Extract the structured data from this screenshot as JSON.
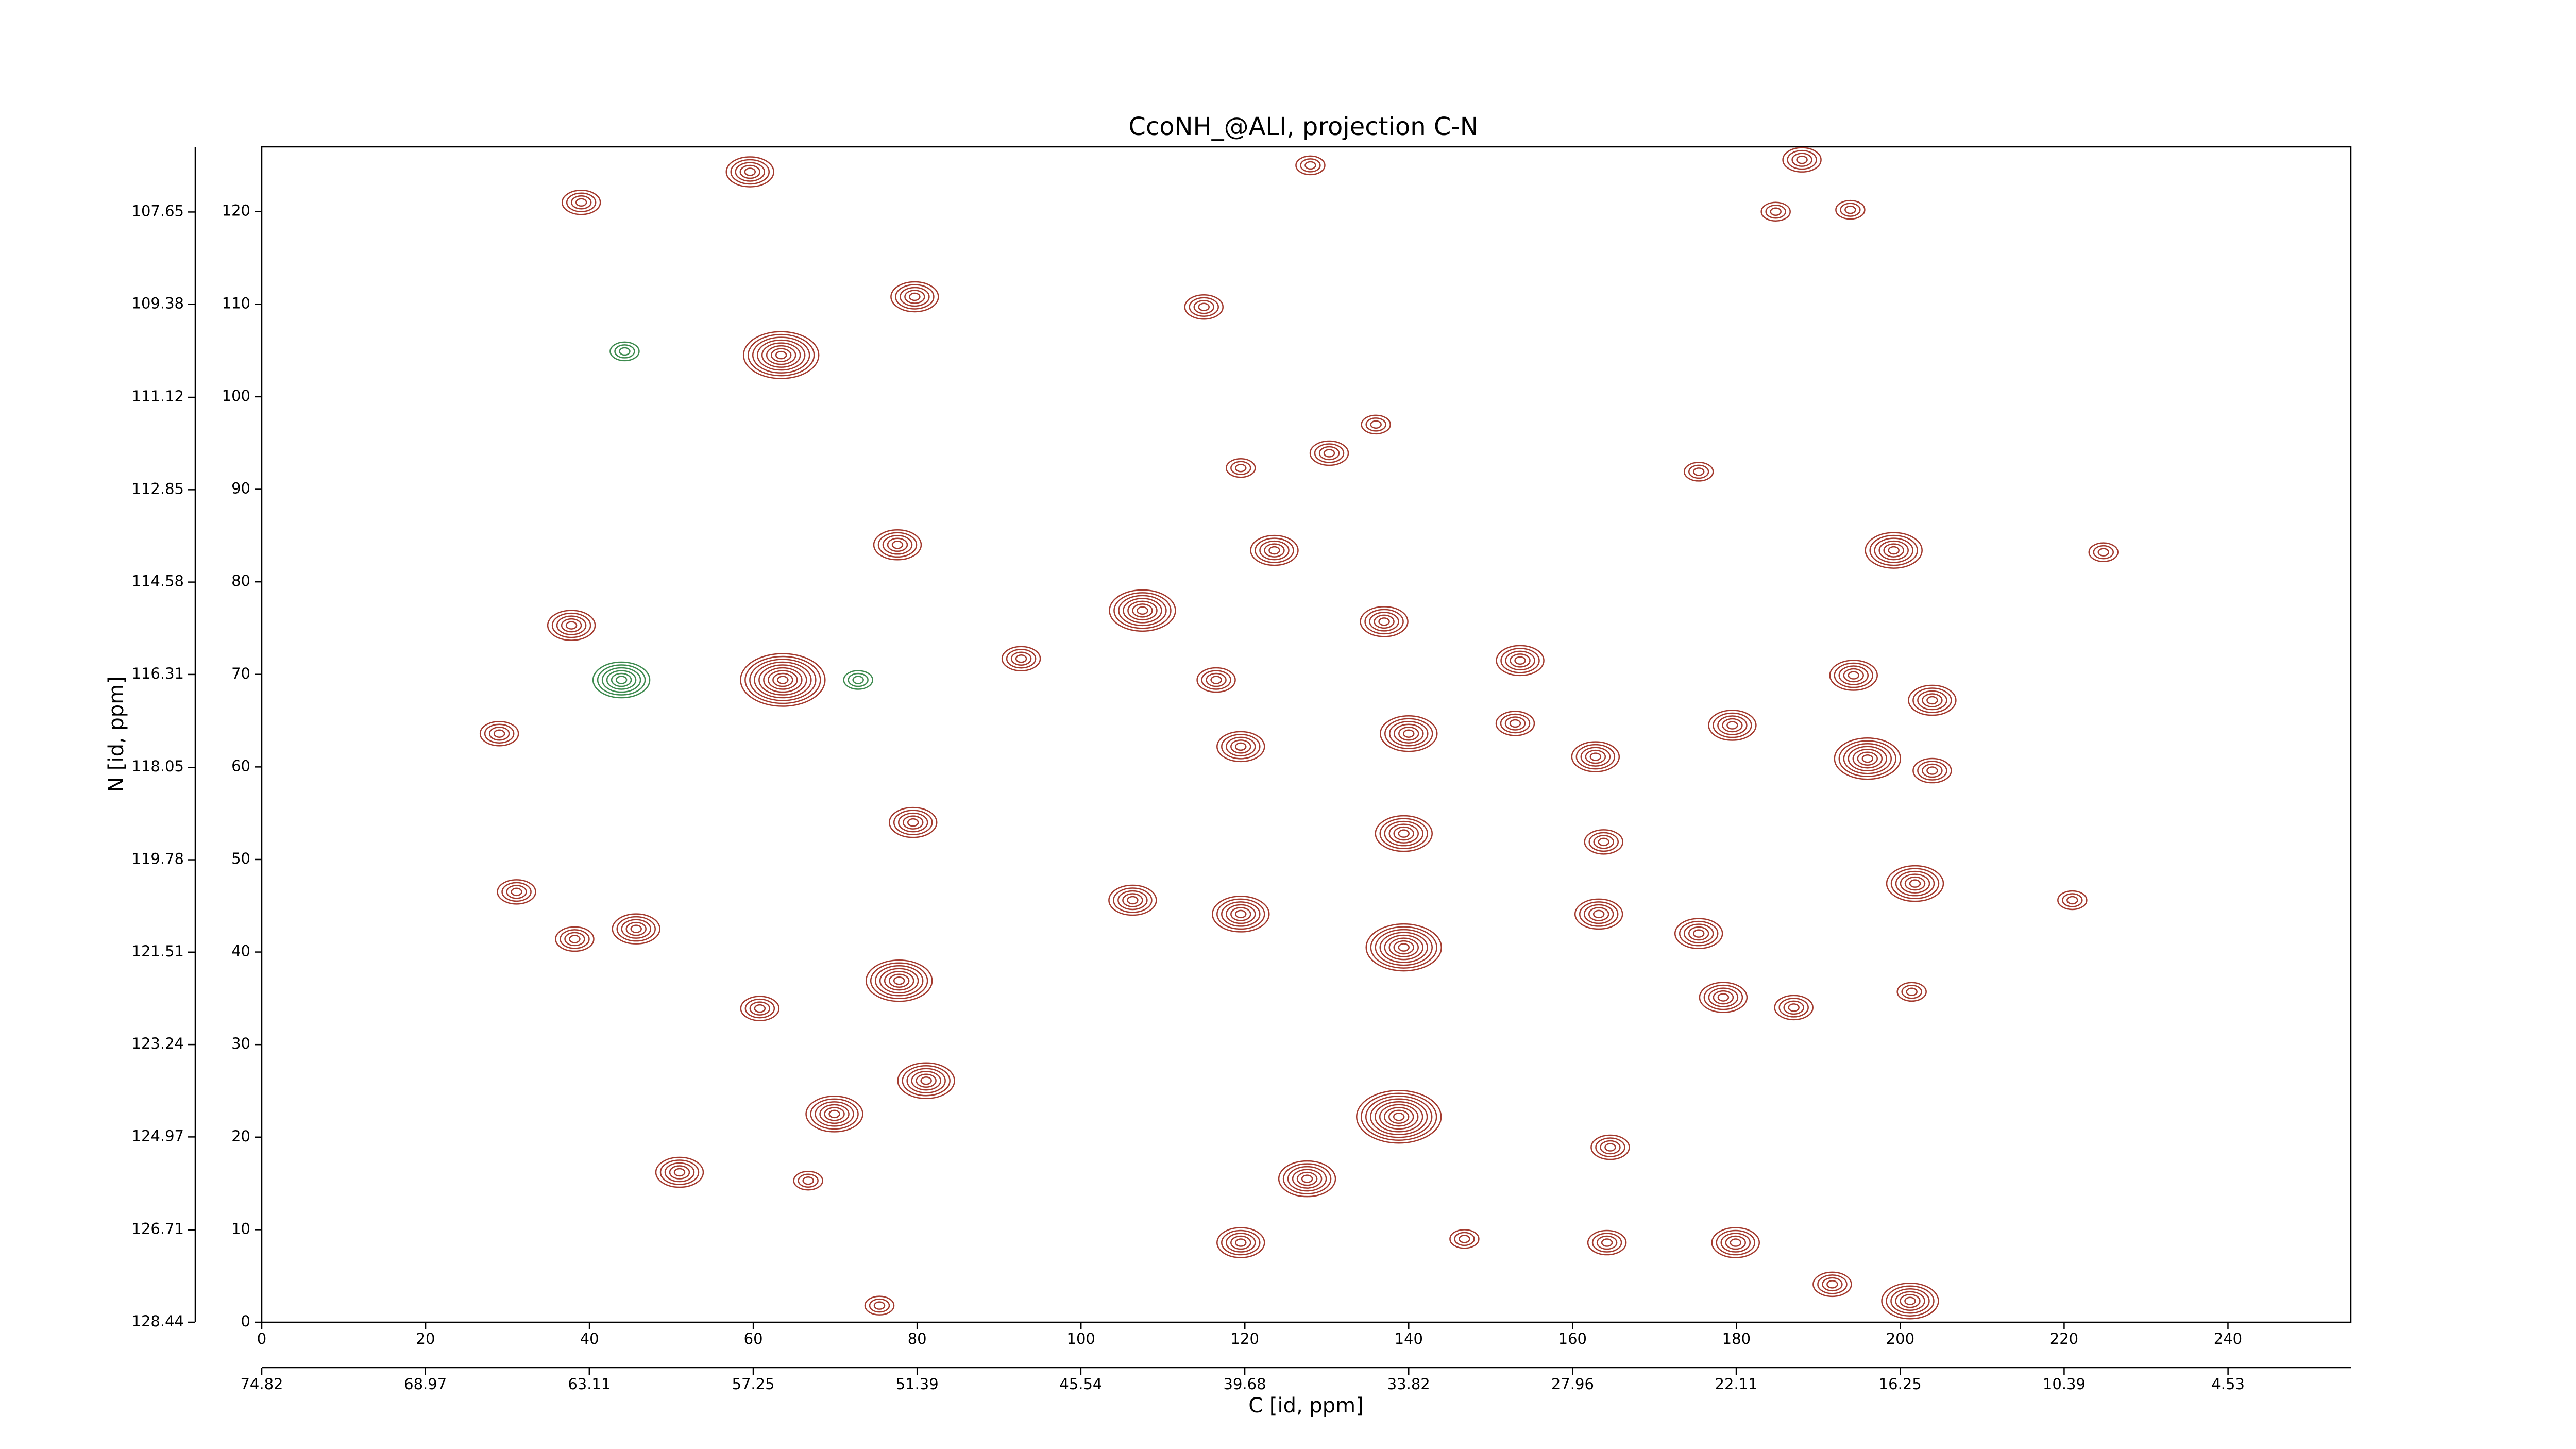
{
  "chart_data": {
    "type": "contour",
    "title": "CcoNH_@ALI, projection C-N",
    "xlabel": "C [id, ppm]",
    "ylabel": "N [id, ppm]",
    "xlim": [
      0,
      255
    ],
    "xticks": [
      0,
      20,
      40,
      60,
      80,
      100,
      120,
      140,
      160,
      180,
      200,
      220,
      240
    ],
    "ylim": [
      0,
      127
    ],
    "yticks": [
      0,
      10,
      20,
      30,
      40,
      50,
      60,
      70,
      80,
      90,
      100,
      110,
      120
    ],
    "x2lim": [
      74.82,
      0.14
    ],
    "x2ticks": [
      74.82,
      68.97,
      63.11,
      57.25,
      51.39,
      45.54,
      39.68,
      33.82,
      27.96,
      22.11,
      16.25,
      10.39,
      4.53
    ],
    "y2lim": [
      128.44,
      106.43
    ],
    "y2ticks": [
      128.44,
      126.71,
      124.97,
      123.24,
      121.51,
      119.78,
      118.05,
      116.31,
      114.58,
      112.85,
      111.12,
      109.38,
      107.65
    ],
    "series": [
      {
        "color": "#a33a2e",
        "peaks": [
          {
            "x": 59.6,
            "y": 124.3,
            "levels": 5
          },
          {
            "x": 39,
            "y": 121,
            "levels": 4
          },
          {
            "x": 63.4,
            "y": 104.5,
            "levels": 8
          },
          {
            "x": 79.7,
            "y": 110.8,
            "levels": 5
          },
          {
            "x": 115,
            "y": 109.7,
            "levels": 4
          },
          {
            "x": 128,
            "y": 125,
            "levels": 3
          },
          {
            "x": 188,
            "y": 125.6,
            "levels": 4
          },
          {
            "x": 184.8,
            "y": 120,
            "levels": 3
          },
          {
            "x": 193.9,
            "y": 120.2,
            "levels": 3
          },
          {
            "x": 130.3,
            "y": 93.9,
            "levels": 4
          },
          {
            "x": 136,
            "y": 97,
            "levels": 3
          },
          {
            "x": 119.5,
            "y": 92.3,
            "levels": 3
          },
          {
            "x": 123.6,
            "y": 83.4,
            "levels": 5
          },
          {
            "x": 175.4,
            "y": 91.9,
            "levels": 3
          },
          {
            "x": 199.2,
            "y": 83.4,
            "levels": 6
          },
          {
            "x": 224.8,
            "y": 83.2,
            "levels": 3
          },
          {
            "x": 77.6,
            "y": 84,
            "levels": 5
          },
          {
            "x": 107.5,
            "y": 76.9,
            "levels": 7
          },
          {
            "x": 137,
            "y": 75.7,
            "levels": 5
          },
          {
            "x": 37.8,
            "y": 75.3,
            "levels": 5
          },
          {
            "x": 92.7,
            "y": 71.7,
            "levels": 4
          },
          {
            "x": 63.6,
            "y": 69.4,
            "levels": 9
          },
          {
            "x": 116.5,
            "y": 69.4,
            "levels": 4
          },
          {
            "x": 153.6,
            "y": 71.5,
            "levels": 5
          },
          {
            "x": 194.3,
            "y": 69.9,
            "levels": 5
          },
          {
            "x": 203.9,
            "y": 67.2,
            "levels": 5
          },
          {
            "x": 196,
            "y": 60.9,
            "levels": 7
          },
          {
            "x": 203.9,
            "y": 59.6,
            "levels": 4
          },
          {
            "x": 29,
            "y": 63.6,
            "levels": 4
          },
          {
            "x": 140,
            "y": 63.6,
            "levels": 6
          },
          {
            "x": 119.5,
            "y": 62.2,
            "levels": 5
          },
          {
            "x": 153,
            "y": 64.7,
            "levels": 4
          },
          {
            "x": 162.8,
            "y": 61.1,
            "levels": 5
          },
          {
            "x": 179.5,
            "y": 64.5,
            "levels": 5
          },
          {
            "x": 79.5,
            "y": 54,
            "levels": 5
          },
          {
            "x": 139.4,
            "y": 52.8,
            "levels": 6
          },
          {
            "x": 163.8,
            "y": 51.9,
            "levels": 4
          },
          {
            "x": 201.8,
            "y": 47.4,
            "levels": 6
          },
          {
            "x": 31.1,
            "y": 46.5,
            "levels": 4
          },
          {
            "x": 106.3,
            "y": 45.6,
            "levels": 5
          },
          {
            "x": 119.5,
            "y": 44.1,
            "levels": 6
          },
          {
            "x": 139.4,
            "y": 40.5,
            "levels": 8
          },
          {
            "x": 163.2,
            "y": 44.1,
            "levels": 5
          },
          {
            "x": 175.4,
            "y": 42,
            "levels": 5
          },
          {
            "x": 45.7,
            "y": 42.5,
            "levels": 5
          },
          {
            "x": 38.2,
            "y": 41.4,
            "levels": 4
          },
          {
            "x": 77.8,
            "y": 36.9,
            "levels": 7
          },
          {
            "x": 60.8,
            "y": 33.9,
            "levels": 4
          },
          {
            "x": 178.4,
            "y": 35.1,
            "levels": 5
          },
          {
            "x": 187,
            "y": 34,
            "levels": 4
          },
          {
            "x": 81.1,
            "y": 26.1,
            "levels": 6
          },
          {
            "x": 138.8,
            "y": 22.2,
            "levels": 9
          },
          {
            "x": 69.9,
            "y": 22.5,
            "levels": 6
          },
          {
            "x": 127.6,
            "y": 15.5,
            "levels": 6
          },
          {
            "x": 51,
            "y": 16.2,
            "levels": 5
          },
          {
            "x": 164.6,
            "y": 18.9,
            "levels": 4
          },
          {
            "x": 66.7,
            "y": 15.3,
            "levels": 3
          },
          {
            "x": 179.9,
            "y": 8.6,
            "levels": 5
          },
          {
            "x": 164.2,
            "y": 8.6,
            "levels": 4
          },
          {
            "x": 119.5,
            "y": 8.6,
            "levels": 5
          },
          {
            "x": 146.8,
            "y": 9,
            "levels": 3
          },
          {
            "x": 191.7,
            "y": 4.1,
            "levels": 4
          },
          {
            "x": 201.2,
            "y": 2.3,
            "levels": 6
          },
          {
            "x": 75.4,
            "y": 1.8,
            "levels": 3
          },
          {
            "x": 201.4,
            "y": 35.7,
            "levels": 3
          },
          {
            "x": 221,
            "y": 45.6,
            "levels": 3
          }
        ]
      },
      {
        "color": "#3d8a4e",
        "peaks": [
          {
            "x": 44.3,
            "y": 104.9,
            "levels": 3
          },
          {
            "x": 43.9,
            "y": 69.4,
            "levels": 6
          },
          {
            "x": 72.8,
            "y": 69.4,
            "levels": 3
          }
        ]
      }
    ]
  }
}
